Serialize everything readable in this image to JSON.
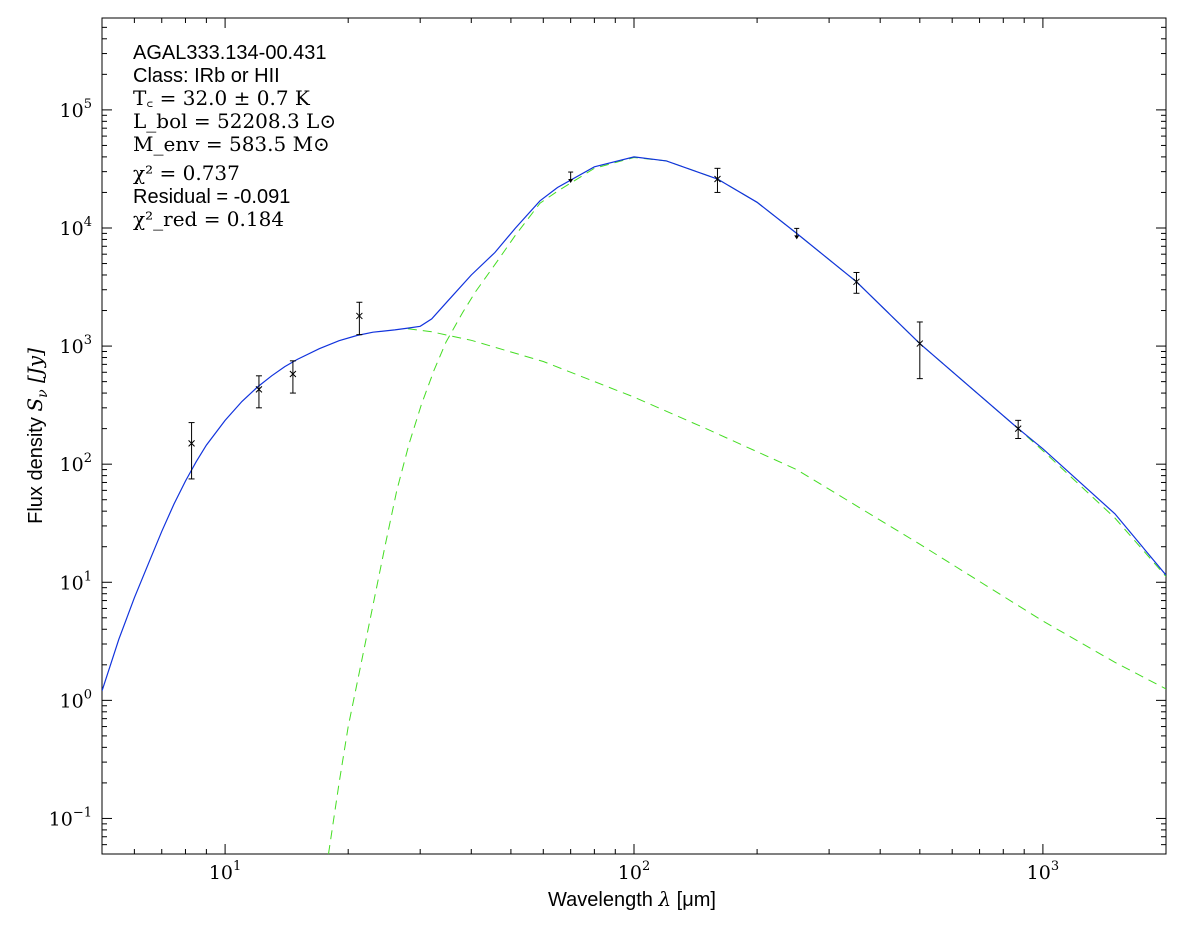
{
  "chart_data": {
    "type": "scatter",
    "xscale": "log",
    "yscale": "log",
    "xlim": [
      5,
      2000
    ],
    "ylim": [
      0.05,
      600000
    ],
    "xlabel_prefix": "Wavelength ",
    "xlabel_symbol": "λ",
    "xlabel_unit": " [μm]",
    "ylabel_prefix": "Flux density ",
    "ylabel_symbol": "S",
    "ylabel_subscript": "ν",
    "ylabel_unit": " [Jy]",
    "x_ticks": [
      {
        "value": 10,
        "base": "10",
        "exp": "1"
      },
      {
        "value": 100,
        "base": "10",
        "exp": "2"
      },
      {
        "value": 1000,
        "base": "10",
        "exp": "3"
      }
    ],
    "y_ticks": [
      {
        "value": 0.1,
        "base": "10",
        "exp": "−1"
      },
      {
        "value": 1,
        "base": "10",
        "exp": "0"
      },
      {
        "value": 10,
        "base": "10",
        "exp": "1"
      },
      {
        "value": 100,
        "base": "10",
        "exp": "2"
      },
      {
        "value": 1000,
        "base": "10",
        "exp": "3"
      },
      {
        "value": 10000,
        "base": "10",
        "exp": "4"
      },
      {
        "value": 100000,
        "base": "10",
        "exp": "5"
      }
    ],
    "annotations": {
      "source": "AGAL333.134-00.431",
      "class": "Class: IRb or HII",
      "tc": "T꜀ = 32.0 ± 0.7 K",
      "lbol": "L_bol = 52208.3 L⊙",
      "menv": "M_env = 583.5 M⊙",
      "chi2": "χ² = 0.737",
      "residual": "Residual = -0.091",
      "chi2red": "χ²_red = 0.184"
    },
    "data_points": [
      {
        "x": 8.28,
        "y": 150,
        "ylow": 75,
        "yhigh": 225
      },
      {
        "x": 12.1,
        "y": 430,
        "ylow": 300,
        "yhigh": 560
      },
      {
        "x": 14.65,
        "y": 580,
        "ylow": 400,
        "yhigh": 750
      },
      {
        "x": 21.3,
        "y": 1800,
        "ylow": 1250,
        "yhigh": 2350
      },
      {
        "x": 70,
        "y": 27000,
        "upper_limit": true
      },
      {
        "x": 160,
        "y": 26000,
        "ylow": 20000,
        "yhigh": 32000
      },
      {
        "x": 250,
        "y": 9000,
        "upper_limit": true
      },
      {
        "x": 350,
        "y": 3500,
        "ylow": 2800,
        "yhigh": 4200
      },
      {
        "x": 500,
        "y": 1050,
        "ylow": 530,
        "yhigh": 1600
      },
      {
        "x": 870,
        "y": 200,
        "ylow": 165,
        "yhigh": 235
      }
    ],
    "series": [
      {
        "style": "dashed",
        "color": "#44dd22",
        "points": [
          [
            17.9,
            0.05
          ],
          [
            19,
            0.2
          ],
          [
            20,
            0.6
          ],
          [
            22,
            3
          ],
          [
            24.6,
            20
          ],
          [
            26.3,
            60
          ],
          [
            28.2,
            150
          ],
          [
            30.2,
            320
          ],
          [
            32.4,
            620
          ],
          [
            34.7,
            1080
          ],
          [
            38.1,
            1920
          ],
          [
            41,
            2900
          ],
          [
            45.7,
            4900
          ],
          [
            51.3,
            8700
          ],
          [
            58.9,
            16200
          ],
          [
            65,
            20500
          ],
          [
            80,
            32000
          ],
          [
            100,
            39500
          ],
          [
            120,
            37000
          ],
          [
            160,
            26000
          ],
          [
            200,
            16500
          ],
          [
            250,
            9000
          ],
          [
            350,
            3500
          ],
          [
            500,
            1050
          ],
          [
            870,
            200
          ],
          [
            1000,
            130
          ],
          [
            1500,
            35
          ],
          [
            2000,
            11.2
          ]
        ]
      },
      {
        "style": "dashed",
        "color": "#44dd22",
        "points": [
          [
            28,
            1400
          ],
          [
            32,
            1320
          ],
          [
            40,
            1120
          ],
          [
            60,
            740
          ],
          [
            100,
            370
          ],
          [
            150,
            200
          ],
          [
            250,
            90
          ],
          [
            500,
            21
          ],
          [
            1000,
            4.7
          ],
          [
            1500,
            2.1
          ],
          [
            2000,
            1.25
          ]
        ]
      },
      {
        "style": "solid",
        "color": "#1133dd",
        "points": [
          [
            5,
            1.2
          ],
          [
            5.5,
            3.3
          ],
          [
            6,
            7.4
          ],
          [
            6.5,
            14.5
          ],
          [
            7,
            27
          ],
          [
            7.5,
            46
          ],
          [
            8,
            72
          ],
          [
            8.5,
            105
          ],
          [
            9,
            145
          ],
          [
            10,
            235
          ],
          [
            11,
            340
          ],
          [
            12,
            450
          ],
          [
            13,
            560
          ],
          [
            14,
            670
          ],
          [
            15,
            770
          ],
          [
            17,
            950
          ],
          [
            19,
            1110
          ],
          [
            21,
            1230
          ],
          [
            23,
            1310
          ],
          [
            26,
            1370
          ],
          [
            28,
            1420
          ],
          [
            30,
            1470
          ],
          [
            32,
            1700
          ],
          [
            35,
            2400
          ],
          [
            40,
            4000
          ],
          [
            45.7,
            6200
          ],
          [
            51.3,
            10000
          ],
          [
            58.9,
            17000
          ],
          [
            65,
            22000
          ],
          [
            80,
            33000
          ],
          [
            100,
            40000
          ],
          [
            120,
            37000
          ],
          [
            160,
            26000
          ],
          [
            200,
            16500
          ],
          [
            250,
            9000
          ],
          [
            350,
            3500
          ],
          [
            500,
            1050
          ],
          [
            870,
            200
          ],
          [
            1000,
            135
          ],
          [
            1500,
            38
          ],
          [
            2000,
            11.5
          ]
        ]
      }
    ]
  }
}
